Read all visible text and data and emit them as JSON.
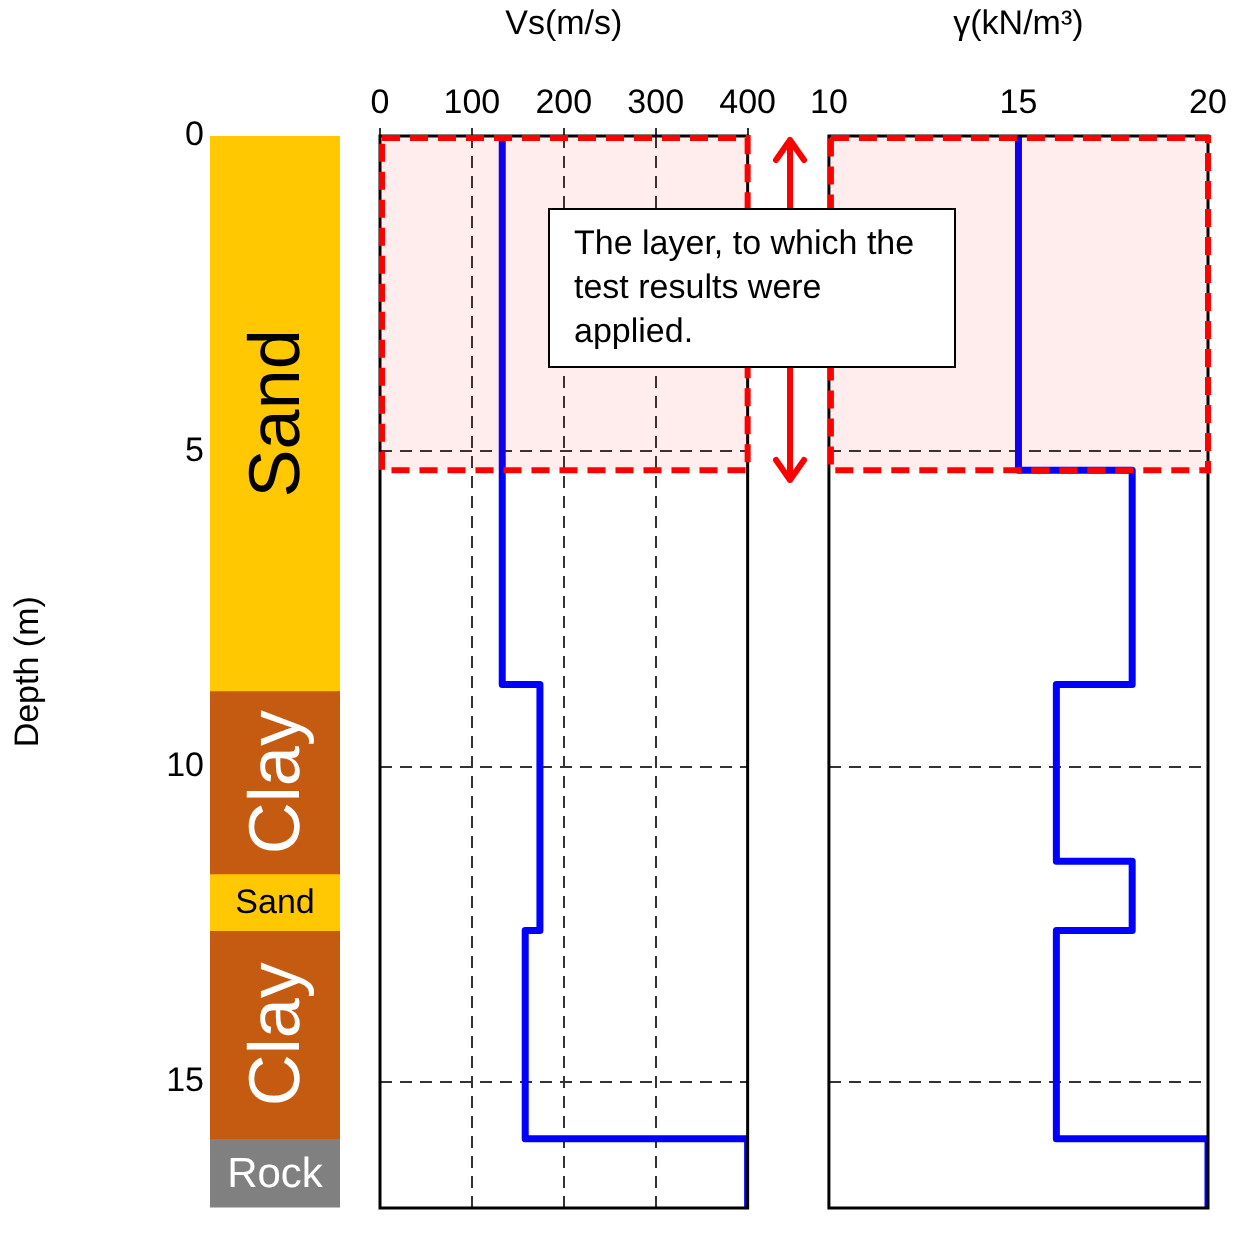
{
  "chart_data": [
    {
      "type": "bar",
      "stacked": true,
      "categories": [
        null
      ],
      "ylabel": "Depth (m)",
      "ylim": [
        17,
        0
      ],
      "yticks": [
        0,
        5,
        10,
        15
      ],
      "tick_labels": "y",
      "grid": false,
      "legend": false,
      "series": [
        {
          "name": "Sand",
          "color": "#ffc800",
          "values": [
            8.8
          ]
        },
        {
          "name": "Clay",
          "color": "#c55a11",
          "values": [
            2.9
          ]
        },
        {
          "name": "Sand",
          "color": "#ffc800",
          "values": [
            0.9
          ]
        },
        {
          "name": "Clay",
          "color": "#c55a11",
          "values": [
            3.3
          ]
        },
        {
          "name": "Rock",
          "color": "#808080",
          "values": [
            1.1
          ]
        }
      ]
    },
    {
      "type": "line",
      "xlabel": "Vs(m/s)",
      "xlim": [
        0,
        400
      ],
      "xticks": [
        0,
        100,
        200,
        300,
        400
      ],
      "ylim": [
        17,
        0
      ],
      "yticks": [
        0,
        5,
        10,
        15
      ],
      "tick_labels": "x",
      "grid": true,
      "legend": false,
      "marker": "none",
      "series": [
        {
          "color": "#0000ff",
          "x": [
            133,
            133,
            174,
            174,
            158,
            158,
            400,
            400
          ],
          "values": [
            0,
            8.7,
            8.7,
            12.6,
            12.6,
            15.9,
            15.9,
            17
          ]
        }
      ],
      "bands": [
        {
          "axis": "y",
          "from": 0,
          "to": 5.3,
          "color": "#ff0000"
        }
      ],
      "annotations": [
        "The layer, to which the test results were applied."
      ]
    },
    {
      "type": "line",
      "xlabel": "γ(kN/m³)",
      "xlim": [
        10,
        20
      ],
      "xticks": [
        10,
        15,
        20
      ],
      "ylim": [
        17,
        0
      ],
      "yticks": [
        0,
        5,
        10,
        15
      ],
      "tick_labels": "x",
      "grid": "y",
      "legend": false,
      "marker": "none",
      "series": [
        {
          "color": "#0000ff",
          "x": [
            15,
            15,
            18,
            18,
            16,
            16,
            18,
            18,
            16,
            16,
            20,
            20
          ],
          "values": [
            0,
            5.3,
            5.3,
            8.7,
            8.7,
            11.5,
            11.5,
            12.6,
            12.6,
            15.9,
            15.9,
            17
          ]
        }
      ],
      "bands": [
        {
          "axis": "y",
          "from": 0,
          "to": 5.3,
          "color": "#ff0000"
        }
      ]
    }
  ]
}
